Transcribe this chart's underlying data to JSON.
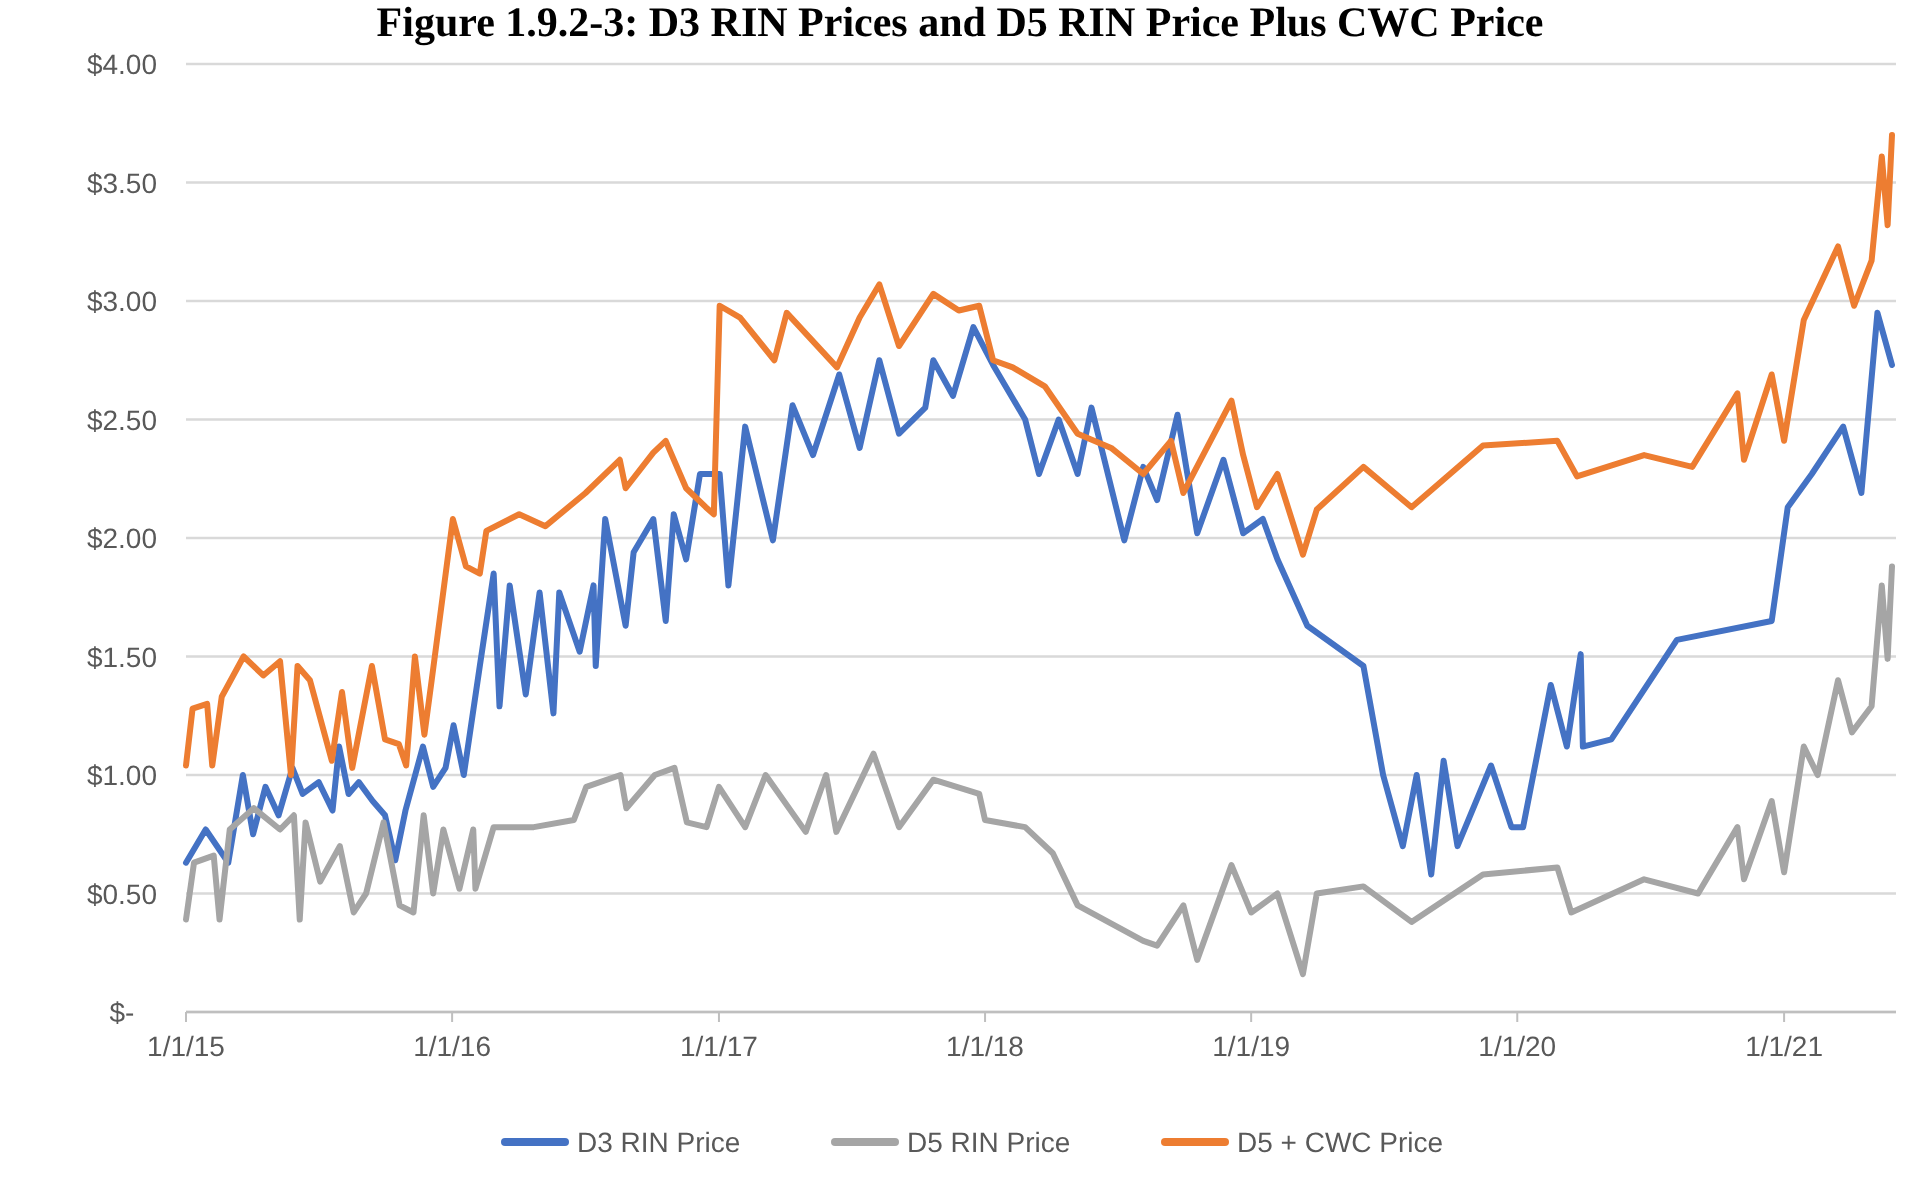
{
  "chart_data": {
    "type": "line",
    "title": "Figure 1.9.2-3: D3 RIN Prices and D5 RIN Price Plus CWC Price",
    "xlim": [
      "2015-01-01",
      "2021-05-29"
    ],
    "xticks": [
      {
        "value": "2015-01-01",
        "label": "1/1/15"
      },
      {
        "value": "2016-01-01",
        "label": "1/1/16"
      },
      {
        "value": "2017-01-01",
        "label": "1/1/17"
      },
      {
        "value": "2018-01-01",
        "label": "1/1/18"
      },
      {
        "value": "2019-01-01",
        "label": "1/1/19"
      },
      {
        "value": "2020-01-01",
        "label": "1/1/20"
      },
      {
        "value": "2021-01-01",
        "label": "1/1/21"
      }
    ],
    "ylim": [
      0,
      4
    ],
    "yticks": [
      {
        "value": 0,
        "label": "$-"
      },
      {
        "value": 0.5,
        "label": "$0.50"
      },
      {
        "value": 1,
        "label": "$1.00"
      },
      {
        "value": 1.5,
        "label": "$1.50"
      },
      {
        "value": 2,
        "label": "$2.00"
      },
      {
        "value": 2.5,
        "label": "$2.50"
      },
      {
        "value": 3,
        "label": "$3.00"
      },
      {
        "value": 3.5,
        "label": "$3.50"
      },
      {
        "value": 4,
        "label": "$4.00"
      }
    ],
    "grid": "y",
    "legend": "bottom",
    "marker": "none",
    "line_style": "solid",
    "series": [
      {
        "name": "D3 RIN Price",
        "color": "#4472c4",
        "x": [
          "2015-01-01",
          "2015-01-28",
          "2015-02-28",
          "2015-03-20",
          "2015-04-03",
          "2015-04-20",
          "2015-05-08",
          "2015-05-27",
          "2015-06-10",
          "2015-07-02",
          "2015-07-21",
          "2015-07-30",
          "2015-08-12",
          "2015-08-26",
          "2015-09-14",
          "2015-10-01",
          "2015-10-15",
          "2015-10-29",
          "2015-11-22",
          "2015-12-06",
          "2015-12-23",
          "2016-01-03",
          "2016-01-17",
          "2016-02-08",
          "2016-02-27",
          "2016-03-06",
          "2016-03-20",
          "2016-04-11",
          "2016-04-30",
          "2016-05-19",
          "2016-05-27",
          "2016-06-24",
          "2016-07-13",
          "2016-07-16",
          "2016-07-29",
          "2016-08-26",
          "2016-09-06",
          "2016-10-03",
          "2016-10-20",
          "2016-10-31",
          "2016-11-17",
          "2016-12-06",
          "2017-01-02",
          "2017-01-14",
          "2017-02-06",
          "2017-03-16",
          "2017-04-12",
          "2017-05-10",
          "2017-06-15",
          "2017-07-13",
          "2017-08-09",
          "2017-09-05",
          "2017-10-11",
          "2017-10-22",
          "2017-11-18",
          "2017-12-16",
          "2018-01-12",
          "2018-02-25",
          "2018-03-16",
          "2018-04-12",
          "2018-05-08",
          "2018-05-27",
          "2018-07-11",
          "2018-08-06",
          "2018-08-25",
          "2018-09-22",
          "2018-10-19",
          "2018-11-24",
          "2018-12-21",
          "2019-01-17",
          "2019-02-06",
          "2019-03-19",
          "2019-06-04",
          "2019-07-01",
          "2019-07-28",
          "2019-08-16",
          "2019-09-05",
          "2019-09-22",
          "2019-10-11",
          "2019-11-26",
          "2019-12-24",
          "2020-01-09",
          "2020-02-16",
          "2020-03-09",
          "2020-03-28",
          "2020-03-31",
          "2020-05-09",
          "2020-08-07",
          "2020-12-15",
          "2021-01-06",
          "2021-02-08",
          "2021-03-23",
          "2021-04-17",
          "2021-05-09",
          "2021-05-29"
        ],
        "values": [
          0.63,
          0.77,
          0.63,
          1.0,
          0.75,
          0.95,
          0.83,
          1.03,
          0.92,
          0.97,
          0.85,
          1.12,
          0.92,
          0.97,
          0.89,
          0.83,
          0.64,
          0.85,
          1.12,
          0.95,
          1.03,
          1.21,
          1.0,
          1.46,
          1.85,
          1.29,
          1.8,
          1.34,
          1.77,
          1.26,
          1.77,
          1.52,
          1.8,
          1.46,
          2.08,
          1.63,
          1.94,
          2.08,
          1.65,
          2.1,
          1.91,
          2.27,
          2.27,
          1.8,
          2.47,
          1.99,
          2.56,
          2.35,
          2.69,
          2.38,
          2.75,
          2.44,
          2.55,
          2.75,
          2.6,
          2.89,
          2.73,
          2.5,
          2.27,
          2.5,
          2.27,
          2.55,
          1.99,
          2.3,
          2.16,
          2.52,
          2.02,
          2.33,
          2.02,
          2.08,
          1.91,
          1.63,
          1.46,
          1.0,
          0.7,
          1.0,
          0.58,
          1.06,
          0.7,
          1.04,
          0.78,
          0.78,
          1.38,
          1.12,
          1.51,
          1.12,
          1.15,
          1.57,
          1.65,
          2.13,
          2.27,
          2.47,
          2.19,
          2.95,
          2.73
        ]
      },
      {
        "name": "D5 RIN Price",
        "color": "#a5a5a5",
        "x": [
          "2015-01-01",
          "2015-01-12",
          "2015-02-08",
          "2015-02-16",
          "2015-03-02",
          "2015-04-04",
          "2015-05-10",
          "2015-05-29",
          "2015-06-06",
          "2015-06-14",
          "2015-07-04",
          "2015-07-31",
          "2015-08-19",
          "2015-09-05",
          "2015-09-29",
          "2015-10-21",
          "2015-11-09",
          "2015-11-23",
          "2015-12-06",
          "2015-12-20",
          "2016-01-11",
          "2016-01-30",
          "2016-02-02",
          "2016-02-27",
          "2016-04-22",
          "2016-06-16",
          "2016-07-03",
          "2016-08-19",
          "2016-08-27",
          "2016-10-05",
          "2016-11-01",
          "2016-11-18",
          "2016-12-15",
          "2017-01-01",
          "2017-02-06",
          "2017-03-06",
          "2017-04-30",
          "2017-05-28",
          "2017-06-11",
          "2017-08-01",
          "2017-09-05",
          "2017-10-22",
          "2017-12-24",
          "2018-01-01",
          "2018-02-25",
          "2018-04-04",
          "2018-05-08",
          "2018-08-06",
          "2018-08-25",
          "2018-09-30",
          "2018-10-19",
          "2018-12-05",
          "2019-01-01",
          "2019-02-06",
          "2019-03-13",
          "2019-04-01",
          "2019-06-04",
          "2019-08-09",
          "2019-11-15",
          "2020-02-25",
          "2020-03-15",
          "2020-06-23",
          "2020-09-05",
          "2020-10-29",
          "2020-11-07",
          "2020-12-15",
          "2021-01-01",
          "2021-01-28",
          "2021-02-16",
          "2021-03-16",
          "2021-04-04",
          "2021-05-01",
          "2021-05-15",
          "2021-05-23",
          "2021-05-29"
        ],
        "values": [
          0.39,
          0.63,
          0.66,
          0.39,
          0.77,
          0.86,
          0.77,
          0.83,
          0.39,
          0.8,
          0.55,
          0.7,
          0.42,
          0.5,
          0.8,
          0.45,
          0.42,
          0.83,
          0.5,
          0.77,
          0.52,
          0.77,
          0.52,
          0.78,
          0.78,
          0.81,
          0.95,
          1.0,
          0.86,
          1.0,
          1.03,
          0.8,
          0.78,
          0.95,
          0.78,
          1.0,
          0.76,
          1.0,
          0.76,
          1.09,
          0.78,
          0.98,
          0.92,
          0.81,
          0.78,
          0.67,
          0.45,
          0.3,
          0.28,
          0.45,
          0.22,
          0.62,
          0.42,
          0.5,
          0.16,
          0.5,
          0.53,
          0.38,
          0.58,
          0.61,
          0.42,
          0.56,
          0.5,
          0.78,
          0.56,
          0.89,
          0.59,
          1.12,
          1.0,
          1.4,
          1.18,
          1.29,
          1.8,
          1.49,
          1.88
        ]
      },
      {
        "name": "D5 + CWC Price",
        "color": "#ed7d31",
        "x": [
          "2015-01-01",
          "2015-01-10",
          "2015-01-30",
          "2015-02-06",
          "2015-02-19",
          "2015-03-21",
          "2015-04-17",
          "2015-05-10",
          "2015-05-25",
          "2015-06-03",
          "2015-06-20",
          "2015-07-20",
          "2015-08-03",
          "2015-08-17",
          "2015-09-13",
          "2015-10-01",
          "2015-10-20",
          "2015-10-30",
          "2015-11-11",
          "2015-11-24",
          "2015-12-04",
          "2016-01-02",
          "2016-01-20",
          "2016-02-08",
          "2016-02-17",
          "2016-04-02",
          "2016-05-08",
          "2016-07-02",
          "2016-08-18",
          "2016-08-26",
          "2016-10-03",
          "2016-10-20",
          "2016-11-17",
          "2016-12-14",
          "2016-12-25",
          "2017-01-02",
          "2017-01-30",
          "2017-03-18",
          "2017-04-04",
          "2017-06-12",
          "2017-07-13",
          "2017-08-09",
          "2017-09-05",
          "2017-10-22",
          "2017-11-26",
          "2017-12-24",
          "2018-01-12",
          "2018-02-08",
          "2018-03-24",
          "2018-05-08",
          "2018-06-23",
          "2018-08-06",
          "2018-09-13",
          "2018-09-30",
          "2018-12-05",
          "2018-12-21",
          "2019-01-09",
          "2019-02-06",
          "2019-03-13",
          "2019-04-01",
          "2019-06-04",
          "2019-08-09",
          "2019-11-15",
          "2020-02-25",
          "2020-03-23",
          "2020-06-23",
          "2020-08-28",
          "2020-10-29",
          "2020-11-07",
          "2020-12-15",
          "2021-01-01",
          "2021-01-28",
          "2021-03-16",
          "2021-04-07",
          "2021-05-01",
          "2021-05-15",
          "2021-05-23",
          "2021-05-29"
        ],
        "values": [
          1.04,
          1.28,
          1.3,
          1.04,
          1.33,
          1.5,
          1.42,
          1.48,
          1.0,
          1.46,
          1.4,
          1.06,
          1.35,
          1.03,
          1.46,
          1.15,
          1.13,
          1.04,
          1.5,
          1.17,
          1.4,
          2.08,
          1.88,
          1.85,
          2.03,
          2.1,
          2.05,
          2.19,
          2.33,
          2.21,
          2.36,
          2.41,
          2.21,
          2.13,
          2.1,
          2.98,
          2.93,
          2.75,
          2.95,
          2.72,
          2.93,
          3.07,
          2.81,
          3.03,
          2.96,
          2.98,
          2.75,
          2.72,
          2.64,
          2.44,
          2.38,
          2.27,
          2.41,
          2.19,
          2.58,
          2.35,
          2.13,
          2.27,
          1.93,
          2.12,
          2.3,
          2.13,
          2.39,
          2.41,
          2.26,
          2.35,
          2.3,
          2.61,
          2.33,
          2.69,
          2.41,
          2.92,
          3.23,
          2.98,
          3.17,
          3.61,
          3.32,
          3.7
        ]
      }
    ]
  }
}
